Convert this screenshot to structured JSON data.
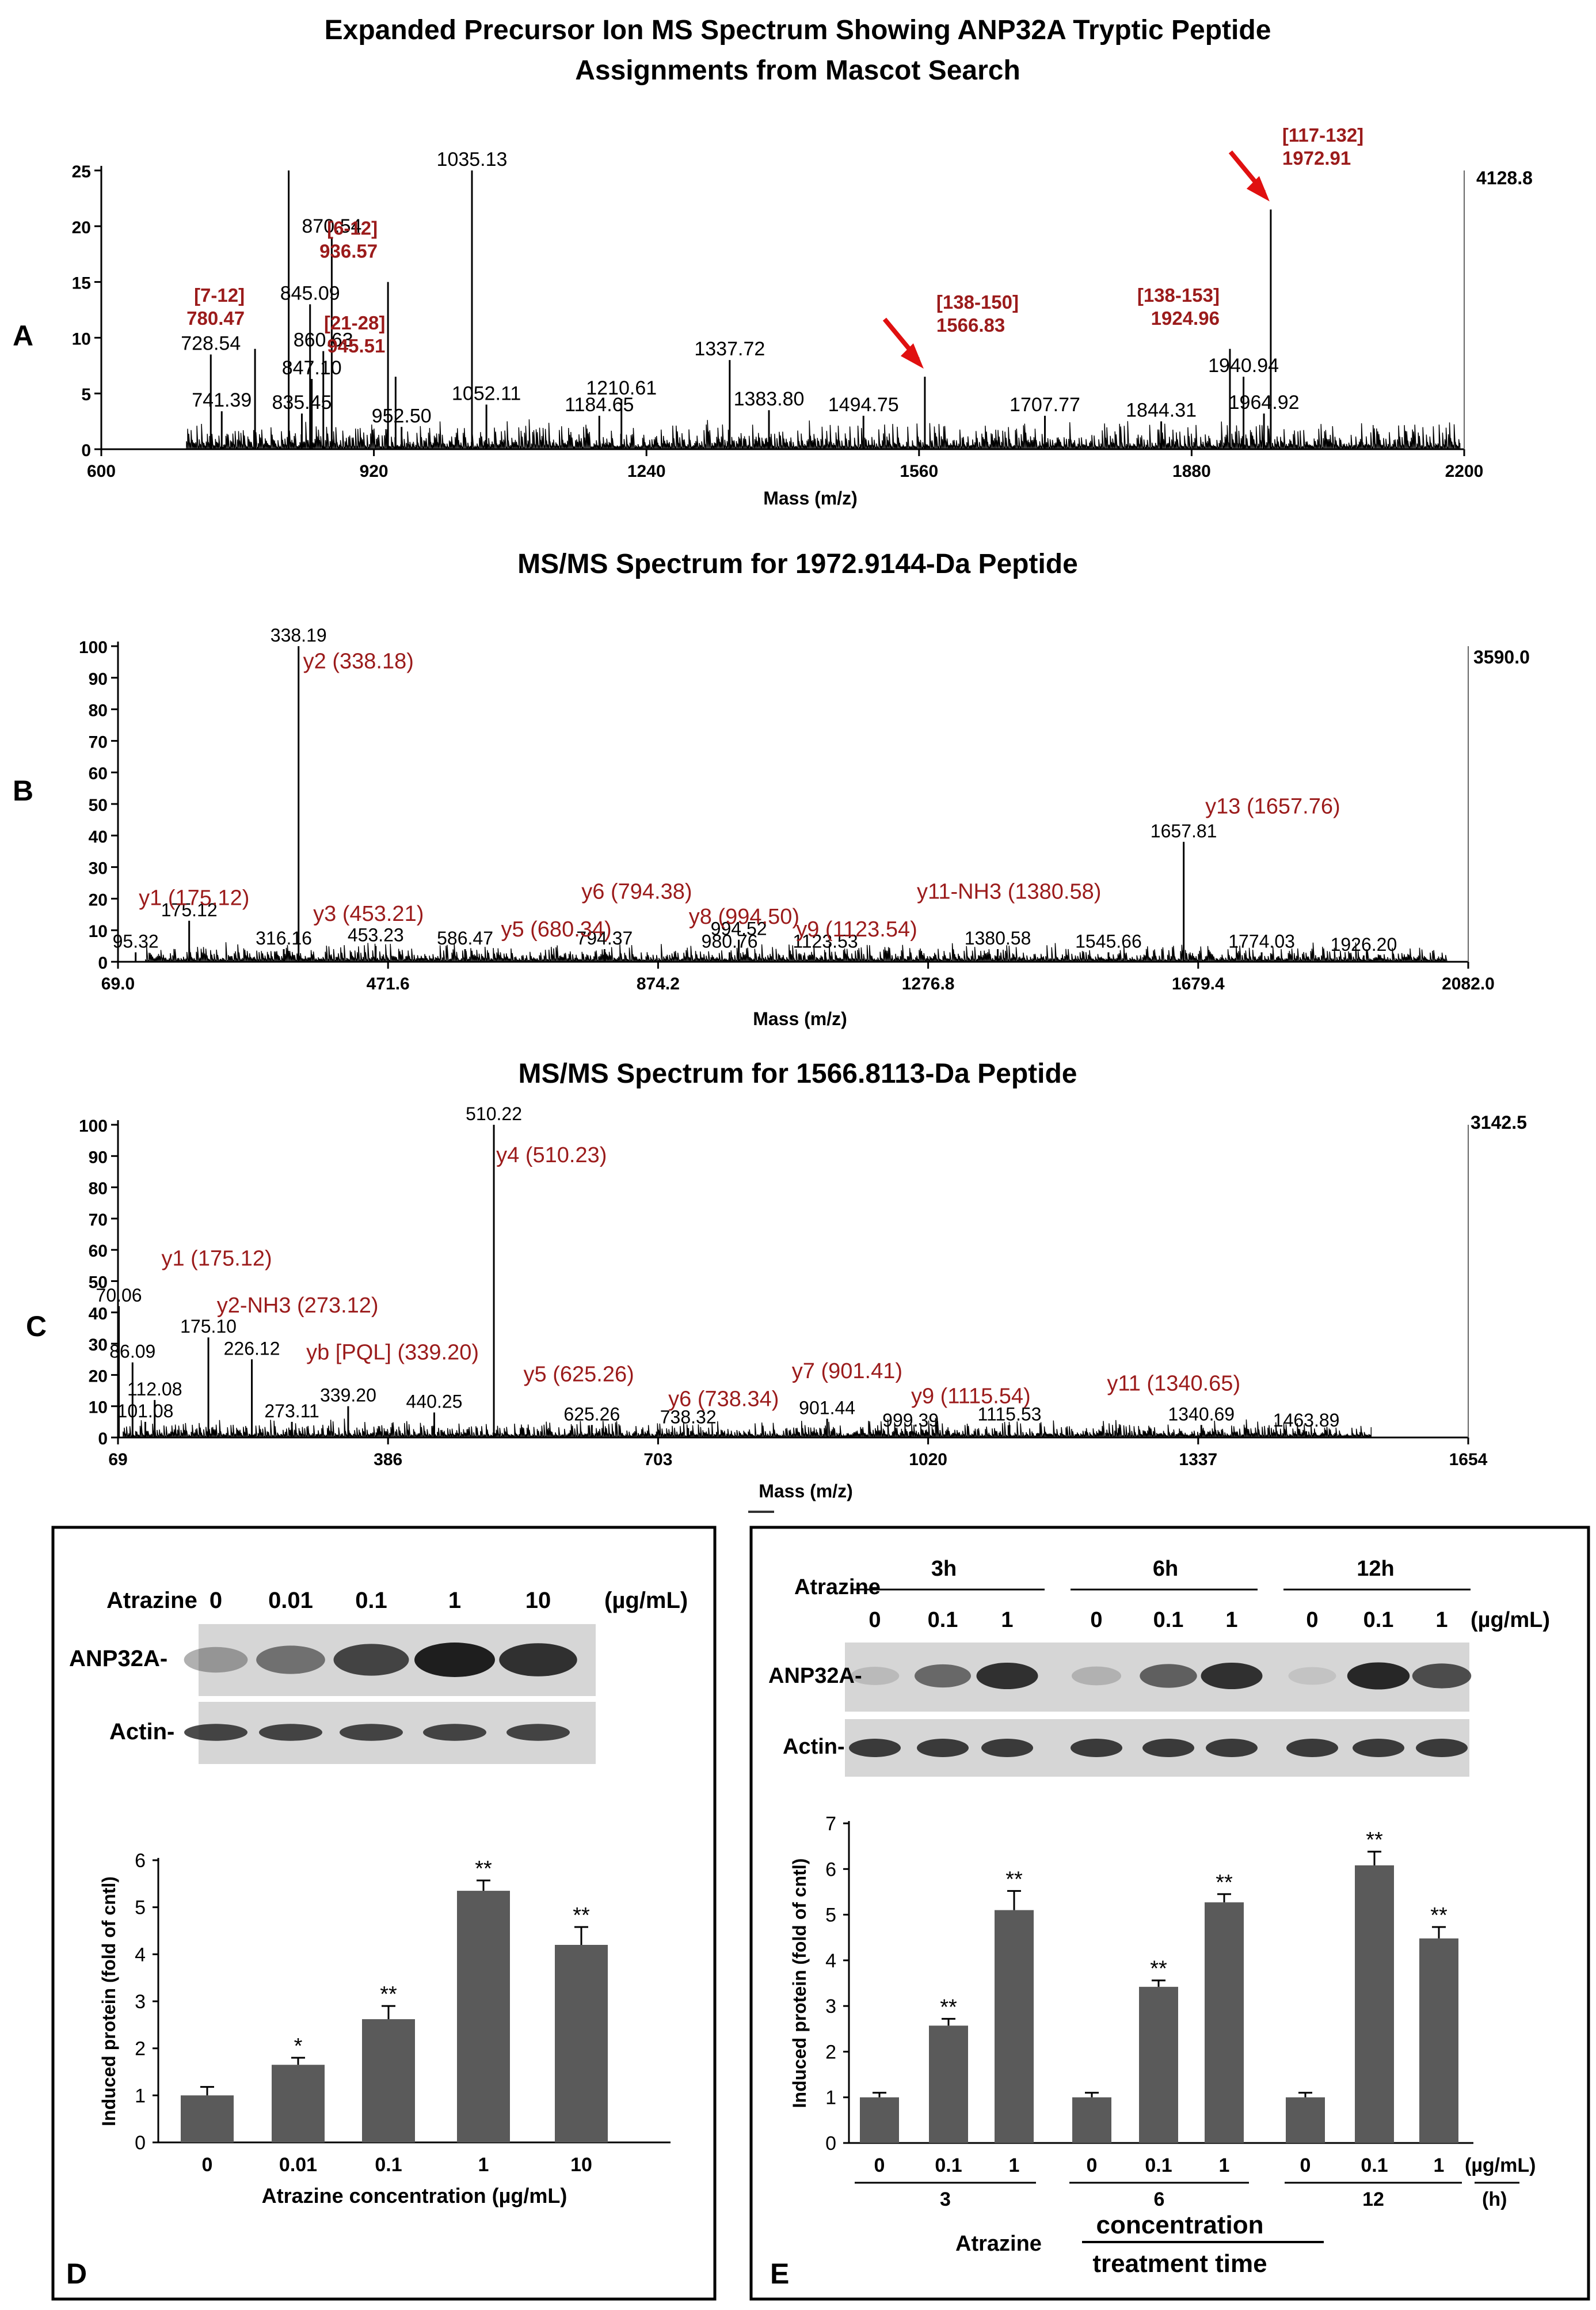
{
  "colors": {
    "ink": "#000000",
    "label": "#9b1b1b",
    "arrow": "#e01010",
    "bar": "#5a5a5a",
    "blotbg": "#d6d6d6",
    "band": "#1e1e1e"
  },
  "chart_data": [
    {
      "panel": "A",
      "type": "spectrum",
      "title_line1": "Expanded Precursor Ion MS Spectrum Showing ANP32A Tryptic Peptide",
      "title_line2": "Assignments from Mascot Search",
      "xlabel": "Mass (m/z)",
      "xlim": [
        600,
        2200
      ],
      "ylim": [
        0,
        25
      ],
      "xticks": [
        "600",
        "920",
        "1240",
        "1560",
        "1880",
        "2200"
      ],
      "yticks": [
        "0",
        "5",
        "10",
        "15",
        "20",
        "25"
      ],
      "max_intensity": "4128.8",
      "noise_start": 700,
      "noise_end": 2195,
      "noise_level": 1.3,
      "peaks": [
        {
          "x": 728.54,
          "y": 8.5,
          "label": "728.54"
        },
        {
          "x": 741.39,
          "y": 3.4,
          "label": "741.39"
        },
        {
          "x": 780.47,
          "y": 9.0
        },
        {
          "x": 820.0,
          "y": 25.0
        },
        {
          "x": 835.45,
          "y": 3.2,
          "label": "835.45"
        },
        {
          "x": 845.09,
          "y": 13.0,
          "label": "845.09"
        },
        {
          "x": 847.1,
          "y": 6.3,
          "label": "847.10"
        },
        {
          "x": 860.63,
          "y": 8.8,
          "label": "860.63"
        },
        {
          "x": 870.54,
          "y": 19.0,
          "label": "870.54"
        },
        {
          "x": 936.57,
          "y": 15.0
        },
        {
          "x": 945.51,
          "y": 6.5
        },
        {
          "x": 952.5,
          "y": 2.0,
          "label": "952.50"
        },
        {
          "x": 1035.13,
          "y": 25.0,
          "label": "1035.13"
        },
        {
          "x": 1052.11,
          "y": 4.0,
          "label": "1052.11"
        },
        {
          "x": 1184.65,
          "y": 3.0,
          "label": "1184.65"
        },
        {
          "x": 1210.61,
          "y": 4.5,
          "label": "1210.61"
        },
        {
          "x": 1337.72,
          "y": 8.0,
          "label": "1337.72"
        },
        {
          "x": 1383.8,
          "y": 3.5,
          "label": "1383.80"
        },
        {
          "x": 1494.75,
          "y": 3.0,
          "label": "1494.75"
        },
        {
          "x": 1566.83,
          "y": 6.5
        },
        {
          "x": 1707.77,
          "y": 3.0,
          "label": "1707.77"
        },
        {
          "x": 1844.31,
          "y": 2.5,
          "label": "1844.31"
        },
        {
          "x": 1924.96,
          "y": 9.0
        },
        {
          "x": 1940.94,
          "y": 6.5,
          "label": "1940.94"
        },
        {
          "x": 1964.92,
          "y": 3.2,
          "label": "1964.92"
        },
        {
          "x": 1972.91,
          "y": 21.5
        }
      ],
      "assignments": [
        {
          "range": "[7-12]",
          "mz": "780.47",
          "x": 780.47,
          "y": 9.0
        },
        {
          "range": "[6-12]",
          "mz": "936.57",
          "x": 936.57,
          "y": 15.0
        },
        {
          "range": "[21-28]",
          "mz": "945.51",
          "x": 945.51,
          "y": 6.5
        },
        {
          "range": "[138-150]",
          "mz": "1566.83",
          "x": 1566.83,
          "y": 6.5,
          "arrow": true
        },
        {
          "range": "[138-153]",
          "mz": "1924.96",
          "x": 1924.96,
          "y": 9.0
        },
        {
          "range": "[117-132]",
          "mz": "1972.91",
          "x": 1972.91,
          "y": 21.5,
          "arrow": true
        }
      ]
    },
    {
      "panel": "B",
      "type": "spectrum",
      "title": "MS/MS Spectrum for 1972.9144-Da Peptide",
      "xlabel": "Mass (m/z)",
      "xlim": [
        69.0,
        2082.0
      ],
      "ylim": [
        0,
        100
      ],
      "xticks": [
        "69.0",
        "471.6",
        "874.2",
        "1276.8",
        "1679.4",
        "2082.0"
      ],
      "yticks": [
        "0",
        "10",
        "20",
        "30",
        "40",
        "50",
        "60",
        "70",
        "80",
        "90",
        "100"
      ],
      "max_intensity": "3590.0",
      "noise_start": 110,
      "noise_end": 2050,
      "noise_level": 3.0,
      "peaks": [
        {
          "x": 95.32,
          "y": 3,
          "label": "95.32"
        },
        {
          "x": 175.12,
          "y": 13,
          "label": "175.12"
        },
        {
          "x": 316.16,
          "y": 4,
          "label": "316.16"
        },
        {
          "x": 338.19,
          "y": 100,
          "label": "338.19"
        },
        {
          "x": 453.23,
          "y": 5,
          "label": "453.23"
        },
        {
          "x": 586.47,
          "y": 4,
          "label": "586.47"
        },
        {
          "x": 794.37,
          "y": 4,
          "label": "794.37"
        },
        {
          "x": 980.76,
          "y": 3,
          "label": "980.76"
        },
        {
          "x": 994.52,
          "y": 7,
          "label": "994.52"
        },
        {
          "x": 1123.53,
          "y": 3,
          "label": "1123.53"
        },
        {
          "x": 1380.58,
          "y": 4,
          "label": "1380.58"
        },
        {
          "x": 1545.66,
          "y": 3,
          "label": "1545.66"
        },
        {
          "x": 1657.81,
          "y": 38,
          "label": "1657.81"
        },
        {
          "x": 1774.03,
          "y": 3,
          "label": "1774.03"
        },
        {
          "x": 1926.2,
          "y": 2,
          "label": "1926.20"
        }
      ],
      "ion_labels": [
        {
          "text": "y1 (175.12)",
          "x": 100,
          "y": 18
        },
        {
          "text": "y2 (338.18)",
          "x": 345,
          "y": 93
        },
        {
          "text": "y3 (453.21)",
          "x": 360,
          "y": 13
        },
        {
          "text": "y5 (680.34)",
          "x": 640,
          "y": 8
        },
        {
          "text": "y6 (794.38)",
          "x": 760,
          "y": 20
        },
        {
          "text": "y8 (994.50)",
          "x": 920,
          "y": 12
        },
        {
          "text": "y9 (1123.54)",
          "x": 1080,
          "y": 8
        },
        {
          "text": "y11-NH3 (1380.58)",
          "x": 1260,
          "y": 20
        },
        {
          "text": "y13 (1657.76)",
          "x": 1690,
          "y": 47
        }
      ]
    },
    {
      "panel": "C",
      "type": "spectrum",
      "title": "MS/MS Spectrum for 1566.8113-Da Peptide",
      "xlabel": "Mass (m/z)",
      "xlim": [
        69,
        1654
      ],
      "ylim": [
        0,
        100
      ],
      "xticks": [
        "69",
        "386",
        "703",
        "1020",
        "1337",
        "1654"
      ],
      "yticks": [
        "0",
        "10",
        "20",
        "30",
        "40",
        "50",
        "60",
        "70",
        "80",
        "90",
        "100"
      ],
      "max_intensity": "3142.5",
      "noise_start": 75,
      "noise_end": 1540,
      "noise_level": 3.0,
      "peaks": [
        {
          "x": 70.06,
          "y": 42,
          "label": "70.06"
        },
        {
          "x": 86.09,
          "y": 24,
          "label": "86.09"
        },
        {
          "x": 101.08,
          "y": 5,
          "label": "101.08"
        },
        {
          "x": 112.08,
          "y": 12,
          "label": "112.08"
        },
        {
          "x": 175.1,
          "y": 32,
          "label": "175.10"
        },
        {
          "x": 226.12,
          "y": 25,
          "label": "226.12"
        },
        {
          "x": 273.11,
          "y": 5,
          "label": "273.11"
        },
        {
          "x": 339.2,
          "y": 10,
          "label": "339.20"
        },
        {
          "x": 440.25,
          "y": 8,
          "label": "440.25"
        },
        {
          "x": 510.22,
          "y": 100,
          "label": "510.22"
        },
        {
          "x": 625.26,
          "y": 4,
          "label": "625.26"
        },
        {
          "x": 738.32,
          "y": 3,
          "label": "738.32"
        },
        {
          "x": 901.44,
          "y": 6,
          "label": "901.44"
        },
        {
          "x": 999.39,
          "y": 2,
          "label": "999.39"
        },
        {
          "x": 1115.53,
          "y": 4,
          "label": "1115.53"
        },
        {
          "x": 1340.69,
          "y": 4,
          "label": "1340.69"
        },
        {
          "x": 1463.89,
          "y": 2,
          "label": "1463.89"
        }
      ],
      "ion_labels": [
        {
          "text": "y1 (175.12)",
          "x": 120,
          "y": 55
        },
        {
          "text": "y2-NH3 (273.12)",
          "x": 185,
          "y": 40
        },
        {
          "text": "yb [PQL] (339.20)",
          "x": 290,
          "y": 25
        },
        {
          "text": "y4 (510.23)",
          "x": 513,
          "y": 88
        },
        {
          "text": "y5 (625.26)",
          "x": 545,
          "y": 18
        },
        {
          "text": "y6 (738.34)",
          "x": 715,
          "y": 10
        },
        {
          "text": "y7 (901.41)",
          "x": 860,
          "y": 19
        },
        {
          "text": "y9 (1115.54)",
          "x": 1000,
          "y": 11
        },
        {
          "text": "y11 (1340.65)",
          "x": 1230,
          "y": 15
        }
      ]
    },
    {
      "panel": "D",
      "type": "bar",
      "categories": [
        "0",
        "0.01",
        "0.1",
        "1",
        "10"
      ],
      "values": [
        1.0,
        1.65,
        2.62,
        5.35,
        4.2
      ],
      "errors": [
        0.18,
        0.15,
        0.28,
        0.22,
        0.38
      ],
      "significance": [
        "",
        "*",
        "**",
        "**",
        "**"
      ],
      "ylabel": "Induced protein (fold of cntl)",
      "xlabel": "Atrazine concentration (µg/mL)",
      "ylim": [
        0,
        6
      ],
      "yticks": [
        "0",
        "1",
        "2",
        "3",
        "4",
        "5",
        "6"
      ]
    },
    {
      "panel": "E",
      "type": "bar",
      "categories": [
        "0",
        "0.1",
        "1",
        "0",
        "0.1",
        "1",
        "0",
        "0.1",
        "1"
      ],
      "values": [
        1.0,
        2.57,
        5.1,
        1.0,
        3.42,
        5.27,
        1.0,
        6.08,
        4.48
      ],
      "errors": [
        0.1,
        0.15,
        0.42,
        0.1,
        0.14,
        0.18,
        0.1,
        0.3,
        0.25
      ],
      "significance": [
        "",
        "**",
        "**",
        "",
        "**",
        "**",
        "",
        "**",
        "**"
      ],
      "ylabel": "Induced protein (fold of cntl)",
      "unit_label": "(µg/mL)",
      "time_values": [
        "3",
        "6",
        "12"
      ],
      "time_unit": "(h)",
      "ylim": [
        0,
        7
      ],
      "yticks": [
        "0",
        "1",
        "2",
        "3",
        "4",
        "5",
        "6",
        "7"
      ]
    }
  ],
  "panel_letters": {
    "A": "A",
    "B": "B",
    "C": "C",
    "D": "D",
    "E": "E"
  },
  "blot_d": {
    "treatment_label": "Atrazine",
    "doses": [
      "0",
      "0.01",
      "0.1",
      "1",
      "10"
    ],
    "unit": "(µg/mL)",
    "rows": [
      "ANP32A-",
      "Actin-"
    ],
    "anp_intensity": [
      0.35,
      0.55,
      0.8,
      1.0,
      0.9
    ],
    "actin_intensity": [
      0.8,
      0.8,
      0.8,
      0.8,
      0.8
    ]
  },
  "blot_e": {
    "treatment_label": "Atrazine",
    "times": [
      "3h",
      "6h",
      "12h"
    ],
    "doses": [
      "0",
      "0.1",
      "1",
      "0",
      "0.1",
      "1",
      "0",
      "0.1",
      "1"
    ],
    "unit": "(µg/mL)",
    "rows": [
      "ANP32A-",
      "Actin-"
    ],
    "anp_intensity": [
      0.15,
      0.6,
      0.9,
      0.2,
      0.65,
      0.9,
      0.1,
      0.95,
      0.75
    ],
    "actin_intensity": [
      0.85,
      0.85,
      0.85,
      0.85,
      0.85,
      0.85,
      0.85,
      0.85,
      0.85
    ],
    "bracket_label": "Atrazine",
    "concentration_label": "concentration",
    "time_label": "treatment time"
  }
}
